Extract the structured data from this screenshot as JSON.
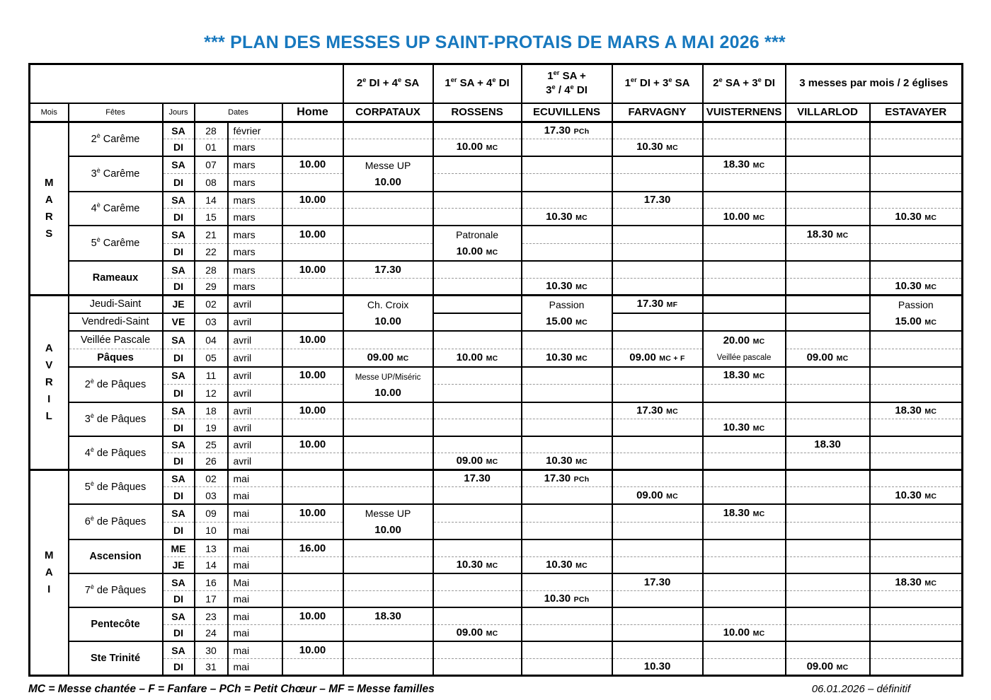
{
  "title": "*** PLAN DES MESSES UP SAINT-PROTAIS DE MARS A MAI 2026 ***",
  "accent_blue": "#1778BE",
  "header": {
    "pattern_row": [
      "2e DI + 4e SA",
      "1er SA + 4e DI",
      "1er SA +\n3e / 4e DI",
      "1er DI + 3e SA",
      "2e SA + 3e DI",
      "3 messes par mois / 2 églises"
    ],
    "columns": [
      "Mois",
      "Fêtes",
      "Jours",
      "Dates",
      "Home",
      "CORPATAUX",
      "ROSSENS",
      "ECUVILLENS",
      "FARVAGNY",
      "VUISTERNENS",
      "VILLARLOD",
      "ESTAVAYER"
    ]
  },
  "months": [
    {
      "name": "MARS",
      "rows": [
        {
          "feast": "2è Carême",
          "feast_bold": false,
          "feast_span": 2,
          "day": "SA",
          "num": "28",
          "mon": "février",
          "sep": "month",
          "cells": [
            "",
            "",
            "",
            "17.30 PCh",
            "",
            "",
            "",
            ""
          ]
        },
        {
          "day": "DI",
          "num": "01",
          "mon": "mars",
          "sep": "sub",
          "cells": [
            "",
            "",
            "10.00 MC",
            "",
            "10.30 MC",
            "",
            "",
            ""
          ]
        },
        {
          "feast": "3è Carême",
          "feast_bold": false,
          "feast_span": 2,
          "day": "SA",
          "num": "07",
          "mon": "mars",
          "sep": "group",
          "cells": [
            "10.00",
            {
              "lines": [
                "Messe UP",
                "10.00"
              ],
              "span": 2
            },
            "",
            "",
            "",
            "18.30 MC",
            "",
            ""
          ]
        },
        {
          "day": "DI",
          "num": "08",
          "mon": "mars",
          "sep": "sub",
          "cells": [
            "",
            "",
            "",
            "",
            "",
            "",
            "",
            ""
          ]
        },
        {
          "feast": "4è Carême",
          "feast_bold": false,
          "feast_span": 2,
          "day": "SA",
          "num": "14",
          "mon": "mars",
          "sep": "group",
          "cells": [
            "10.00",
            "",
            "",
            "",
            "17.30",
            "",
            "",
            ""
          ]
        },
        {
          "day": "DI",
          "num": "15",
          "mon": "mars",
          "sep": "sub",
          "cells": [
            "",
            "",
            "",
            "10.30 MC",
            "",
            "10.00 MC",
            "",
            "10.30 MC"
          ]
        },
        {
          "feast": "5è Carême",
          "feast_bold": false,
          "feast_span": 2,
          "day": "SA",
          "num": "21",
          "mon": "mars",
          "sep": "group",
          "cells": [
            "10.00",
            "",
            {
              "lines": [
                "Patronale",
                "10.00 MC"
              ],
              "span": 2
            },
            "",
            "",
            "",
            "18.30 MC",
            ""
          ]
        },
        {
          "day": "DI",
          "num": "22",
          "mon": "mars",
          "sep": "sub",
          "cells": [
            "",
            "",
            "",
            "",
            "",
            "",
            "",
            ""
          ]
        },
        {
          "feast": "Rameaux",
          "feast_bold": true,
          "feast_span": 2,
          "day": "SA",
          "num": "28",
          "mon": "mars",
          "sep": "group",
          "cells": [
            "10.00",
            "17.30",
            "",
            "",
            "",
            "",
            "",
            ""
          ]
        },
        {
          "day": "DI",
          "num": "29",
          "mon": "mars",
          "sep": "sub",
          "cells": [
            "",
            "",
            "",
            "10.30 MC",
            "",
            "",
            "",
            "10.30 MC"
          ]
        }
      ]
    },
    {
      "name": "AVRIL",
      "rows": [
        {
          "feast": "Jeudi-Saint",
          "feast_bold": false,
          "feast_span": 1,
          "day": "JE",
          "num": "02",
          "mon": "avril",
          "sep": "month",
          "cells": [
            "",
            {
              "lines": [
                "Ch. Croix",
                "10.00"
              ],
              "span": 2
            },
            "",
            {
              "lines": [
                "Passion",
                "15.00 MC"
              ],
              "span": 2
            },
            "17.30 MF",
            "",
            "",
            {
              "lines": [
                "Passion",
                "15.00 MC"
              ],
              "span": 2
            }
          ]
        },
        {
          "feast": "Vendredi-Saint",
          "feast_bold": false,
          "feast_span": 1,
          "day": "VE",
          "num": "03",
          "mon": "avril",
          "sep": "group",
          "cells": [
            "",
            "",
            "",
            "",
            "",
            "",
            "",
            ""
          ]
        },
        {
          "feast": "Veillée Pascale",
          "feast_bold": false,
          "feast_span": 1,
          "day": "SA",
          "num": "04",
          "mon": "avril",
          "sep": "group",
          "cells": [
            "10.00",
            "",
            "",
            "",
            "",
            {
              "lines": [
                "20.00 MC",
                "Veillée pascale"
              ],
              "span": 2
            },
            "",
            ""
          ]
        },
        {
          "feast": "Pâques",
          "feast_bold": true,
          "feast_span": 1,
          "day": "DI",
          "num": "05",
          "mon": "avril",
          "sep": "sub",
          "cells": [
            "",
            "09.00 MC",
            "10.00 MC",
            "10.30 MC",
            "09.00 MC + F",
            "",
            "09.00 MC",
            ""
          ]
        },
        {
          "feast": "2è de Pâques",
          "feast_bold": false,
          "feast_span": 2,
          "day": "SA",
          "num": "11",
          "mon": "avril",
          "sep": "group",
          "cells": [
            "10.00",
            {
              "lines": [
                "Messe UP/Miséric",
                "10.00"
              ],
              "span": 2
            },
            "",
            "",
            "",
            "18.30 MC",
            "",
            ""
          ]
        },
        {
          "day": "DI",
          "num": "12",
          "mon": "avril",
          "sep": "sub",
          "cells": [
            "",
            "",
            "",
            "",
            "",
            "",
            "",
            ""
          ]
        },
        {
          "feast": "3è de Pâques",
          "feast_bold": false,
          "feast_span": 2,
          "day": "SA",
          "num": "18",
          "mon": "avril",
          "sep": "group",
          "cells": [
            "10.00",
            "",
            "",
            "",
            "17.30 MC",
            "",
            "",
            "18.30 MC"
          ]
        },
        {
          "day": "DI",
          "num": "19",
          "mon": "avril",
          "sep": "sub",
          "cells": [
            "",
            "",
            "",
            "",
            "",
            "10.30 MC",
            "",
            ""
          ]
        },
        {
          "feast": "4è de Pâques",
          "feast_bold": false,
          "feast_span": 2,
          "day": "SA",
          "num": "25",
          "mon": "avril",
          "sep": "group",
          "cells": [
            "10.00",
            "",
            "",
            "",
            "",
            "",
            "18.30",
            ""
          ]
        },
        {
          "day": "DI",
          "num": "26",
          "mon": "avril",
          "sep": "sub",
          "cells": [
            "",
            "",
            "09.00 MC",
            "10.30 MC",
            "",
            "",
            "",
            ""
          ]
        }
      ]
    },
    {
      "name": "MAI",
      "rows": [
        {
          "feast": "5è de Pâques",
          "feast_bold": false,
          "feast_span": 2,
          "day": "SA",
          "num": "02",
          "mon": "mai",
          "sep": "month",
          "cells": [
            "",
            "",
            "17.30",
            "17.30 PCh",
            "",
            "",
            "",
            ""
          ]
        },
        {
          "day": "DI",
          "num": "03",
          "mon": "mai",
          "sep": "sub",
          "cells": [
            "",
            "",
            "",
            "",
            "09.00 MC",
            "",
            "",
            "10.30 MC"
          ]
        },
        {
          "feast": "6è de Pâques",
          "feast_bold": false,
          "feast_span": 2,
          "day": "SA",
          "num": "09",
          "mon": "mai",
          "sep": "group",
          "cells": [
            "10.00",
            {
              "lines": [
                "Messe UP",
                "10.00"
              ],
              "span": 2
            },
            "",
            "",
            "",
            "18.30 MC",
            "",
            ""
          ]
        },
        {
          "day": "DI",
          "num": "10",
          "mon": "mai",
          "sep": "sub",
          "cells": [
            "",
            "",
            "",
            "",
            "",
            "",
            "",
            ""
          ]
        },
        {
          "feast": "Ascension",
          "feast_bold": true,
          "feast_span": 2,
          "day": "ME",
          "num": "13",
          "mon": "mai",
          "sep": "group",
          "cells": [
            "16.00",
            "",
            "",
            "",
            "",
            "",
            "",
            ""
          ]
        },
        {
          "day": "JE",
          "num": "14",
          "mon": "mai",
          "sep": "sub",
          "cells": [
            "",
            "",
            "10.30 MC",
            "10.30 MC",
            "",
            "",
            "",
            ""
          ]
        },
        {
          "feast": "7è de Pâques",
          "feast_bold": false,
          "feast_span": 2,
          "day": "SA",
          "num": "16",
          "mon": "Mai",
          "sep": "group",
          "cells": [
            "",
            "",
            "",
            "",
            "17.30",
            "",
            "",
            "18.30 MC"
          ]
        },
        {
          "day": "DI",
          "num": "17",
          "mon": "mai",
          "sep": "sub",
          "cells": [
            "",
            "",
            "",
            "10.30 PCh",
            "",
            "",
            "",
            ""
          ]
        },
        {
          "feast": "Pentecôte",
          "feast_bold": true,
          "feast_span": 2,
          "day": "SA",
          "num": "23",
          "mon": "mai",
          "sep": "group",
          "cells": [
            "10.00",
            "18.30",
            "",
            "",
            "",
            "",
            "",
            ""
          ]
        },
        {
          "day": "DI",
          "num": "24",
          "mon": "mai",
          "sep": "sub",
          "cells": [
            "",
            "",
            "09.00 MC",
            "",
            "",
            "10.00 MC",
            "",
            ""
          ]
        },
        {
          "feast": "Ste Trinité",
          "feast_bold": true,
          "feast_span": 2,
          "day": "SA",
          "num": "30",
          "mon": "mai",
          "sep": "group",
          "cells": [
            "10.00",
            "",
            "",
            "",
            "",
            "",
            "",
            ""
          ]
        },
        {
          "day": "DI",
          "num": "31",
          "mon": "mai",
          "sep": "sub",
          "cells": [
            "",
            "",
            "",
            "",
            "10.30",
            "",
            "09.00 MC",
            ""
          ]
        }
      ]
    }
  ],
  "footer": {
    "legend": "MC = Messe chantée – F = Fanfare – PCh = Petit Chœur – MF = Messe familles",
    "date_note": "06.01.2026 – définitif"
  }
}
